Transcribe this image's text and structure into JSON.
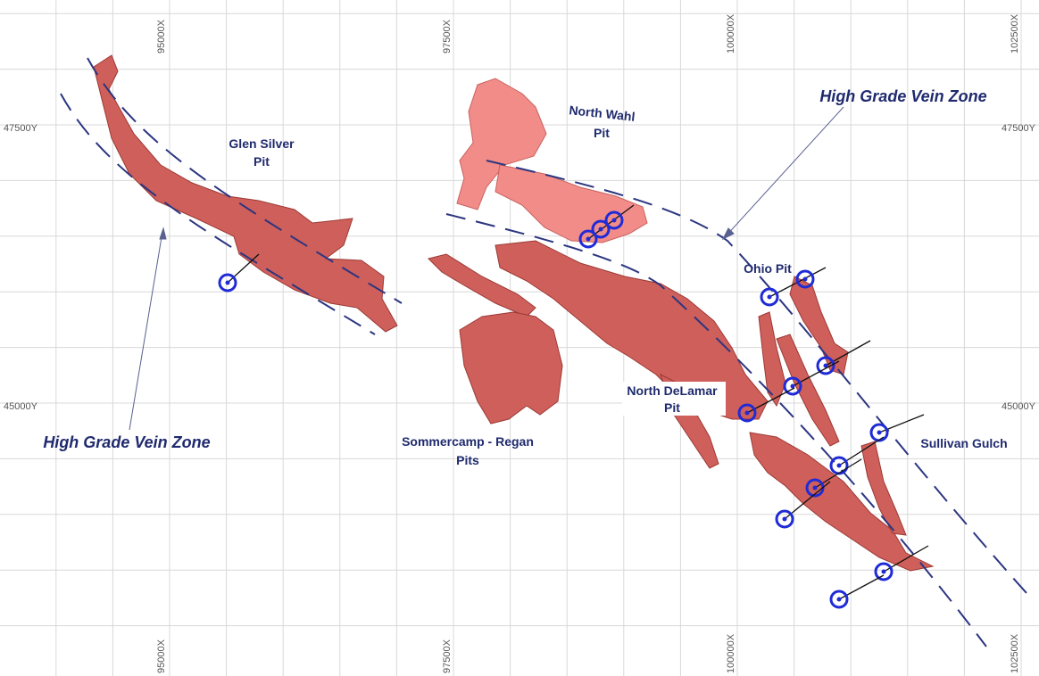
{
  "grid": {
    "x_labels": [
      "95000X",
      "97500X",
      "100000X",
      "102500X"
    ],
    "y_labels": [
      "47500Y",
      "45000Y"
    ]
  },
  "zones": {
    "left": "High Grade Vein Zone",
    "right": "High Grade Vein Zone"
  },
  "pits": {
    "glen_silver": [
      "Glen Silver",
      "Pit"
    ],
    "north_wahl": [
      "North Wahl",
      "Pit"
    ],
    "ohio": "Ohio Pit",
    "north_delamar": [
      "North DeLamar",
      "Pit"
    ],
    "sommercamp_regan": [
      "Sommercamp - Regan",
      "Pits"
    ],
    "sullivan_gulch": "Sullivan Gulch"
  }
}
